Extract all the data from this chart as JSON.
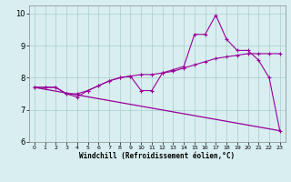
{
  "xlabel": "Windchill (Refroidissement éolien,°C)",
  "bg_color": "#d8eef0",
  "line_color": "#990099",
  "xlim": [
    -0.5,
    23.5
  ],
  "ylim": [
    6.0,
    10.25
  ],
  "xticks": [
    0,
    1,
    2,
    3,
    4,
    5,
    6,
    7,
    8,
    9,
    10,
    11,
    12,
    13,
    14,
    15,
    16,
    17,
    18,
    19,
    20,
    21,
    22,
    23
  ],
  "yticks": [
    6,
    7,
    8,
    9,
    10
  ],
  "series1_x": [
    0,
    1,
    2,
    3,
    4,
    5,
    6,
    7,
    8,
    9,
    10,
    11,
    12,
    13,
    14,
    15,
    16,
    17,
    18,
    19,
    20,
    21,
    22,
    23
  ],
  "series1_y": [
    7.7,
    7.7,
    7.7,
    7.5,
    7.5,
    7.6,
    7.75,
    7.9,
    8.0,
    8.05,
    8.1,
    8.1,
    8.15,
    8.2,
    8.3,
    8.4,
    8.5,
    8.6,
    8.65,
    8.7,
    8.75,
    8.75,
    8.75,
    8.75
  ],
  "series2_x": [
    0,
    1,
    2,
    3,
    4,
    5,
    6,
    7,
    8,
    9,
    10,
    11,
    12,
    13,
    14,
    15,
    16,
    17,
    18,
    19,
    20,
    21,
    22,
    23
  ],
  "series2_y": [
    7.7,
    7.7,
    7.7,
    7.5,
    7.4,
    7.6,
    7.75,
    7.9,
    8.0,
    8.05,
    7.6,
    7.6,
    8.15,
    8.25,
    8.35,
    9.35,
    9.35,
    9.95,
    9.2,
    8.85,
    8.85,
    8.55,
    8.0,
    6.35
  ],
  "series3_x": [
    0,
    23
  ],
  "series3_y": [
    7.7,
    6.35
  ],
  "xtick_fontsize": 4.5,
  "ytick_fontsize": 6.0,
  "xlabel_fontsize": 5.5
}
